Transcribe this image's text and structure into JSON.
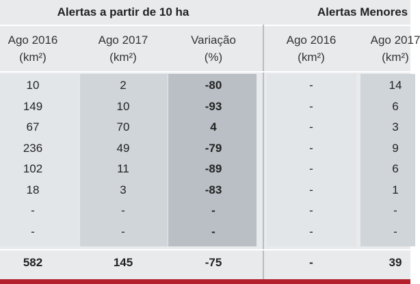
{
  "groups": [
    {
      "title": "Alertas a partir de 10 ha"
    },
    {
      "title": "Alertas Menores"
    }
  ],
  "columns": [
    {
      "label": "Ago 2016",
      "unit": "(km²)"
    },
    {
      "label": "Ago 2017",
      "unit": "(km²)"
    },
    {
      "label": "Variação",
      "unit": "(%)"
    },
    {
      "label": "Ago 2016",
      "unit": "(km²)"
    },
    {
      "label": "Ago 2017",
      "unit": "(km²)"
    }
  ],
  "rows": [
    [
      "10",
      "2",
      "-80",
      "-",
      "14"
    ],
    [
      "149",
      "10",
      "-93",
      "-",
      "6"
    ],
    [
      "67",
      "70",
      "4",
      "-",
      "3"
    ],
    [
      "236",
      "49",
      "-79",
      "-",
      "9"
    ],
    [
      "102",
      "11",
      "-89",
      "-",
      "6"
    ],
    [
      "18",
      "3",
      "-83",
      "-",
      "1"
    ],
    [
      "-",
      "-",
      "-",
      "-",
      "-"
    ],
    [
      "-",
      "-",
      "-",
      "-",
      "-"
    ]
  ],
  "totals": [
    "582",
    "145",
    "-75",
    "-",
    "39"
  ]
}
